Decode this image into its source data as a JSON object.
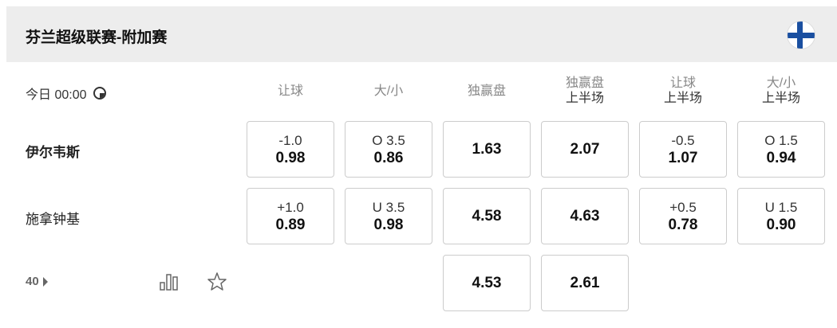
{
  "header": {
    "title": "芬兰超级联赛-附加赛",
    "flag_icon": "finland-flag-icon"
  },
  "match": {
    "time": "今日 00:00",
    "more_count": "40"
  },
  "columns": [
    {
      "label": "让球",
      "sub": ""
    },
    {
      "label": "大/小",
      "sub": ""
    },
    {
      "label": "独赢盘",
      "sub": ""
    },
    {
      "label": "独赢盘",
      "sub": "上半场"
    },
    {
      "label": "让球",
      "sub": "上半场"
    },
    {
      "label": "大/小",
      "sub": "上半场"
    }
  ],
  "rows": [
    {
      "team": "伊尔韦斯",
      "bold": true,
      "cells": [
        {
          "line": "-1.0",
          "odds": "0.98"
        },
        {
          "line": "O 3.5",
          "odds": "0.86"
        },
        {
          "line": "",
          "odds": "1.63"
        },
        {
          "line": "",
          "odds": "2.07"
        },
        {
          "line": "-0.5",
          "odds": "1.07"
        },
        {
          "line": "O 1.5",
          "odds": "0.94"
        }
      ]
    },
    {
      "team": "施拿钟基",
      "bold": false,
      "cells": [
        {
          "line": "+1.0",
          "odds": "0.89"
        },
        {
          "line": "U 3.5",
          "odds": "0.98"
        },
        {
          "line": "",
          "odds": "4.58"
        },
        {
          "line": "",
          "odds": "4.63"
        },
        {
          "line": "+0.5",
          "odds": "0.78"
        },
        {
          "line": "U 1.5",
          "odds": "0.90"
        }
      ]
    },
    {
      "team": "",
      "cells": [
        null,
        null,
        {
          "line": "",
          "odds": "4.53"
        },
        {
          "line": "",
          "odds": "2.61"
        },
        null,
        null
      ]
    }
  ]
}
